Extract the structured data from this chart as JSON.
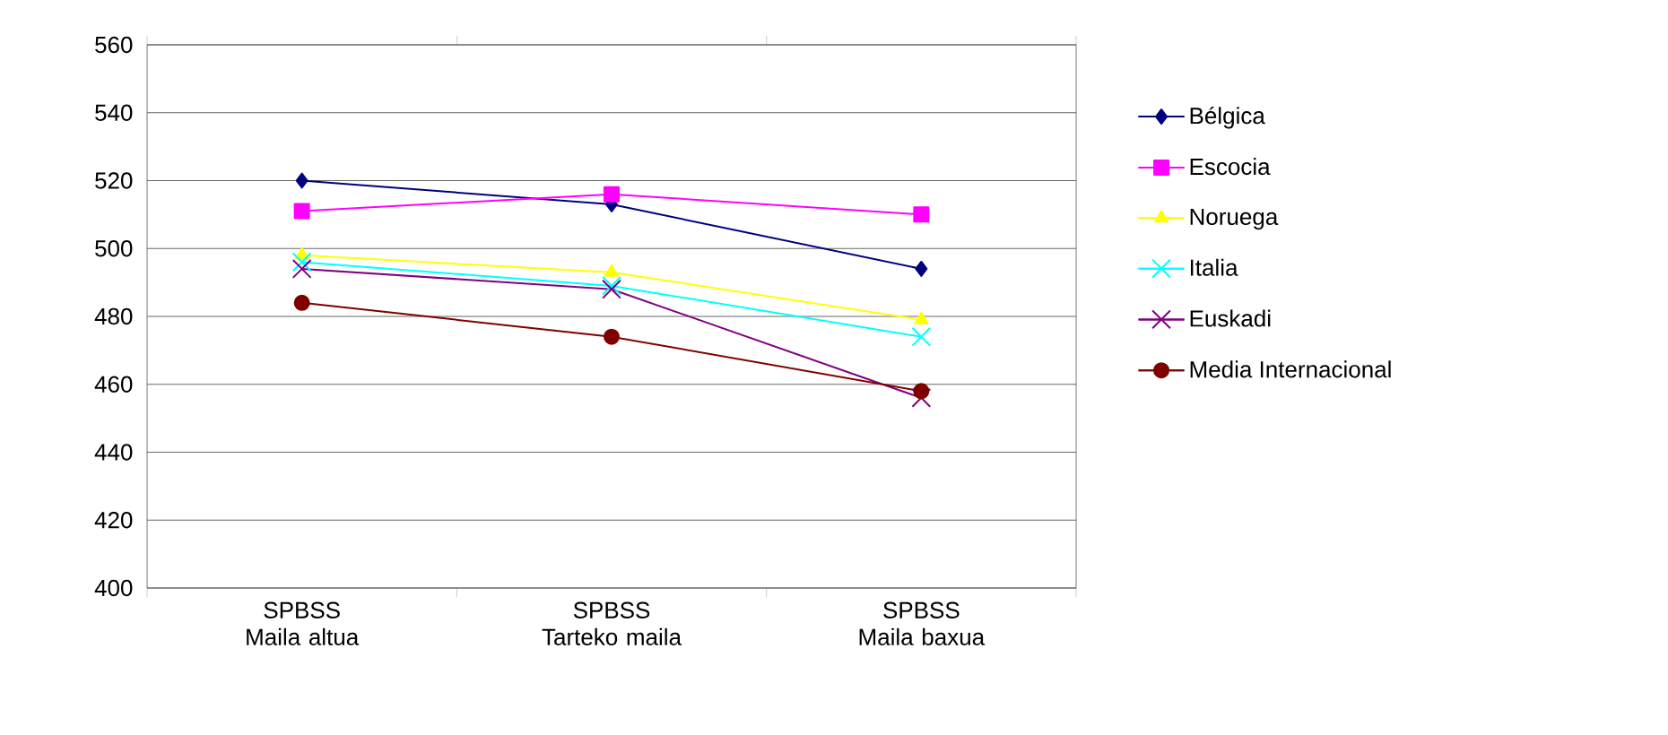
{
  "chart_data": {
    "type": "line",
    "categories": [
      "SPBSS Maila altua",
      "SPBSS Tarteko maila",
      "SPBSS Maila baxua"
    ],
    "series": [
      {
        "name": "Bélgica",
        "color": "#000080",
        "marker": "diamond",
        "values": [
          520,
          513,
          494
        ]
      },
      {
        "name": "Escocia",
        "color": "#ff00ff",
        "marker": "square",
        "values": [
          511,
          516,
          510
        ]
      },
      {
        "name": "Noruega",
        "color": "#ffff00",
        "marker": "triangle",
        "values": [
          498,
          493,
          479
        ]
      },
      {
        "name": "Italia",
        "color": "#00ffff",
        "marker": "cross",
        "values": [
          496,
          489,
          474
        ]
      },
      {
        "name": "Euskadi",
        "color": "#800080",
        "marker": "cross",
        "values": [
          494,
          488,
          456
        ]
      },
      {
        "name": "Media Internacional",
        "color": "#800000",
        "marker": "circle",
        "values": [
          484,
          474,
          458
        ]
      }
    ],
    "ylim": [
      400,
      560
    ],
    "yticks": [
      400,
      420,
      440,
      460,
      480,
      500,
      520,
      540,
      560
    ],
    "grid": "y",
    "legend": "right"
  }
}
